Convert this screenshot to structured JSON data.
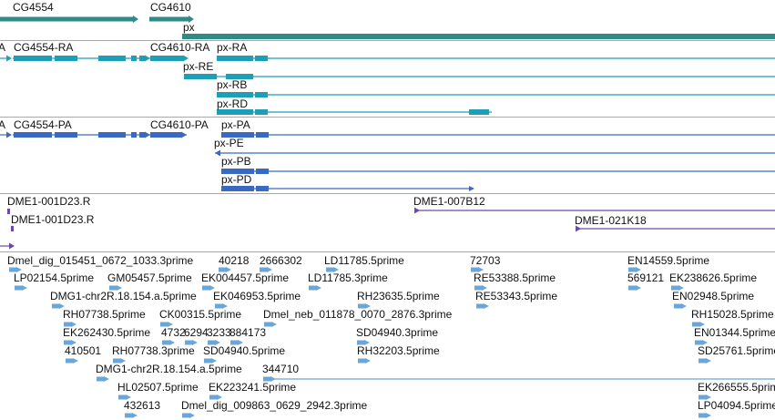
{
  "colors": {
    "gene": "#2e8b88",
    "transcript": "#1e9fb7",
    "protein": "#3a69c4",
    "clone": "#6a4aa8",
    "est": "#6aa6d8",
    "separator": "#a9a9a9"
  },
  "tracks": {
    "genes": {
      "items": [
        {
          "id": "gene-cg4554",
          "label": "CG4554"
        },
        {
          "id": "gene-cg4610",
          "label": "CG4610"
        },
        {
          "id": "gene-px",
          "label": "px"
        }
      ]
    },
    "transcripts": {
      "items": [
        {
          "id": "transcript-a-edge",
          "label": "A"
        },
        {
          "id": "transcript-cg4554-ra",
          "label": "CG4554-RA"
        },
        {
          "id": "transcript-cg4610-ra",
          "label": "CG4610-RA"
        },
        {
          "id": "transcript-px-ra",
          "label": "px-RA"
        },
        {
          "id": "transcript-px-re",
          "label": "px-RE"
        },
        {
          "id": "transcript-px-rb",
          "label": "px-RB"
        },
        {
          "id": "transcript-px-rd",
          "label": "px-RD"
        }
      ]
    },
    "proteins": {
      "items": [
        {
          "id": "protein-a-edge",
          "label": "A"
        },
        {
          "id": "protein-cg4554-pa",
          "label": "CG4554-PA"
        },
        {
          "id": "protein-cg4610-pa",
          "label": "CG4610-PA"
        },
        {
          "id": "protein-px-pa",
          "label": "px-PA"
        },
        {
          "id": "protein-px-pe",
          "label": "px-PE"
        },
        {
          "id": "protein-px-pb",
          "label": "px-PB"
        },
        {
          "id": "protein-px-pd",
          "label": "px-PD"
        }
      ]
    },
    "clones": {
      "items": [
        {
          "id": "clone-dme1-001d23-r-a",
          "label": "DME1-001D23.R"
        },
        {
          "id": "clone-dme1-001d23-r-b",
          "label": "DME1-001D23.R"
        },
        {
          "id": "clone-dme1-007b12",
          "label": "DME1-007B12"
        },
        {
          "id": "clone-dme1-021k18",
          "label": "DME1-021K18"
        }
      ]
    },
    "ests": {
      "items": [
        {
          "id": "est-dmel-dig-015451",
          "label": "Dmel_dig_015451_0672_1033.3prime"
        },
        {
          "id": "est-40218",
          "label": "40218"
        },
        {
          "id": "est-2666302",
          "label": "2666302"
        },
        {
          "id": "est-ld11785-5prime",
          "label": "LD11785.5prime"
        },
        {
          "id": "est-72703",
          "label": "72703"
        },
        {
          "id": "est-en14559-5prime",
          "label": "EN14559.5prime"
        },
        {
          "id": "est-lp02154-5prime",
          "label": "LP02154.5prime"
        },
        {
          "id": "est-gm05457-5prime",
          "label": "GM05457.5prime"
        },
        {
          "id": "est-ek004457-5prime",
          "label": "EK004457.5prime"
        },
        {
          "id": "est-ld11785-3prime",
          "label": "LD11785.3prime"
        },
        {
          "id": "est-re53388-5prime",
          "label": "RE53388.5prime"
        },
        {
          "id": "est-569121",
          "label": "569121"
        },
        {
          "id": "est-ek238626-5prime",
          "label": "EK238626.5prime"
        },
        {
          "id": "est-dmg1-chr2r-a",
          "label": "DMG1-chr2R.18.154.a.5prime"
        },
        {
          "id": "est-ek046953-5prime",
          "label": "EK046953.5prime"
        },
        {
          "id": "est-rh23635-5prime",
          "label": "RH23635.5prime"
        },
        {
          "id": "est-re53343-5prime",
          "label": "RE53343.5prime"
        },
        {
          "id": "est-en02948-5prime",
          "label": "EN02948.5prime"
        },
        {
          "id": "est-rh07738-5prime",
          "label": "RH07738.5prime"
        },
        {
          "id": "est-ck00315-5prime",
          "label": "CK00315.5prime"
        },
        {
          "id": "est-dmel-neb-011878",
          "label": "Dmel_neb_011878_0070_2876.3prime"
        },
        {
          "id": "est-rh15028-5prime",
          "label": "RH15028.5prime"
        },
        {
          "id": "est-ek262430-5prime",
          "label": "EK262430.5prime"
        },
        {
          "id": "est-4732",
          "label": "4732"
        },
        {
          "id": "est-6294",
          "label": "6294"
        },
        {
          "id": "est-3233",
          "label": "3233"
        },
        {
          "id": "est-884173",
          "label": "884173"
        },
        {
          "id": "est-sd04940-3prime",
          "label": "SD04940.3prime"
        },
        {
          "id": "est-en01344-5prime",
          "label": "EN01344.5prime"
        },
        {
          "id": "est-410501",
          "label": "410501"
        },
        {
          "id": "est-rh07738-3prime",
          "label": "RH07738.3prime"
        },
        {
          "id": "est-sd04940-5prime",
          "label": "SD04940.5prime"
        },
        {
          "id": "est-rh32203-5prime",
          "label": "RH32203.5prime"
        },
        {
          "id": "est-sd25761-5prime",
          "label": "SD25761.5prime"
        },
        {
          "id": "est-dmg1-chr2r-b",
          "label": "DMG1-chr2R.18.154.a.5prime"
        },
        {
          "id": "est-344710",
          "label": "344710"
        },
        {
          "id": "est-hl02507-5prime",
          "label": "HL02507.5prime"
        },
        {
          "id": "est-ek223241-5prime",
          "label": "EK223241.5prime"
        },
        {
          "id": "est-ek266555-5prime",
          "label": "EK266555.5prime"
        },
        {
          "id": "est-432613",
          "label": "432613"
        },
        {
          "id": "est-dmel-dig-009863",
          "label": "Dmel_dig_009863_0629_2942.3prime"
        },
        {
          "id": "est-lp04094-5prime",
          "label": "LP04094.5prime"
        }
      ]
    }
  }
}
